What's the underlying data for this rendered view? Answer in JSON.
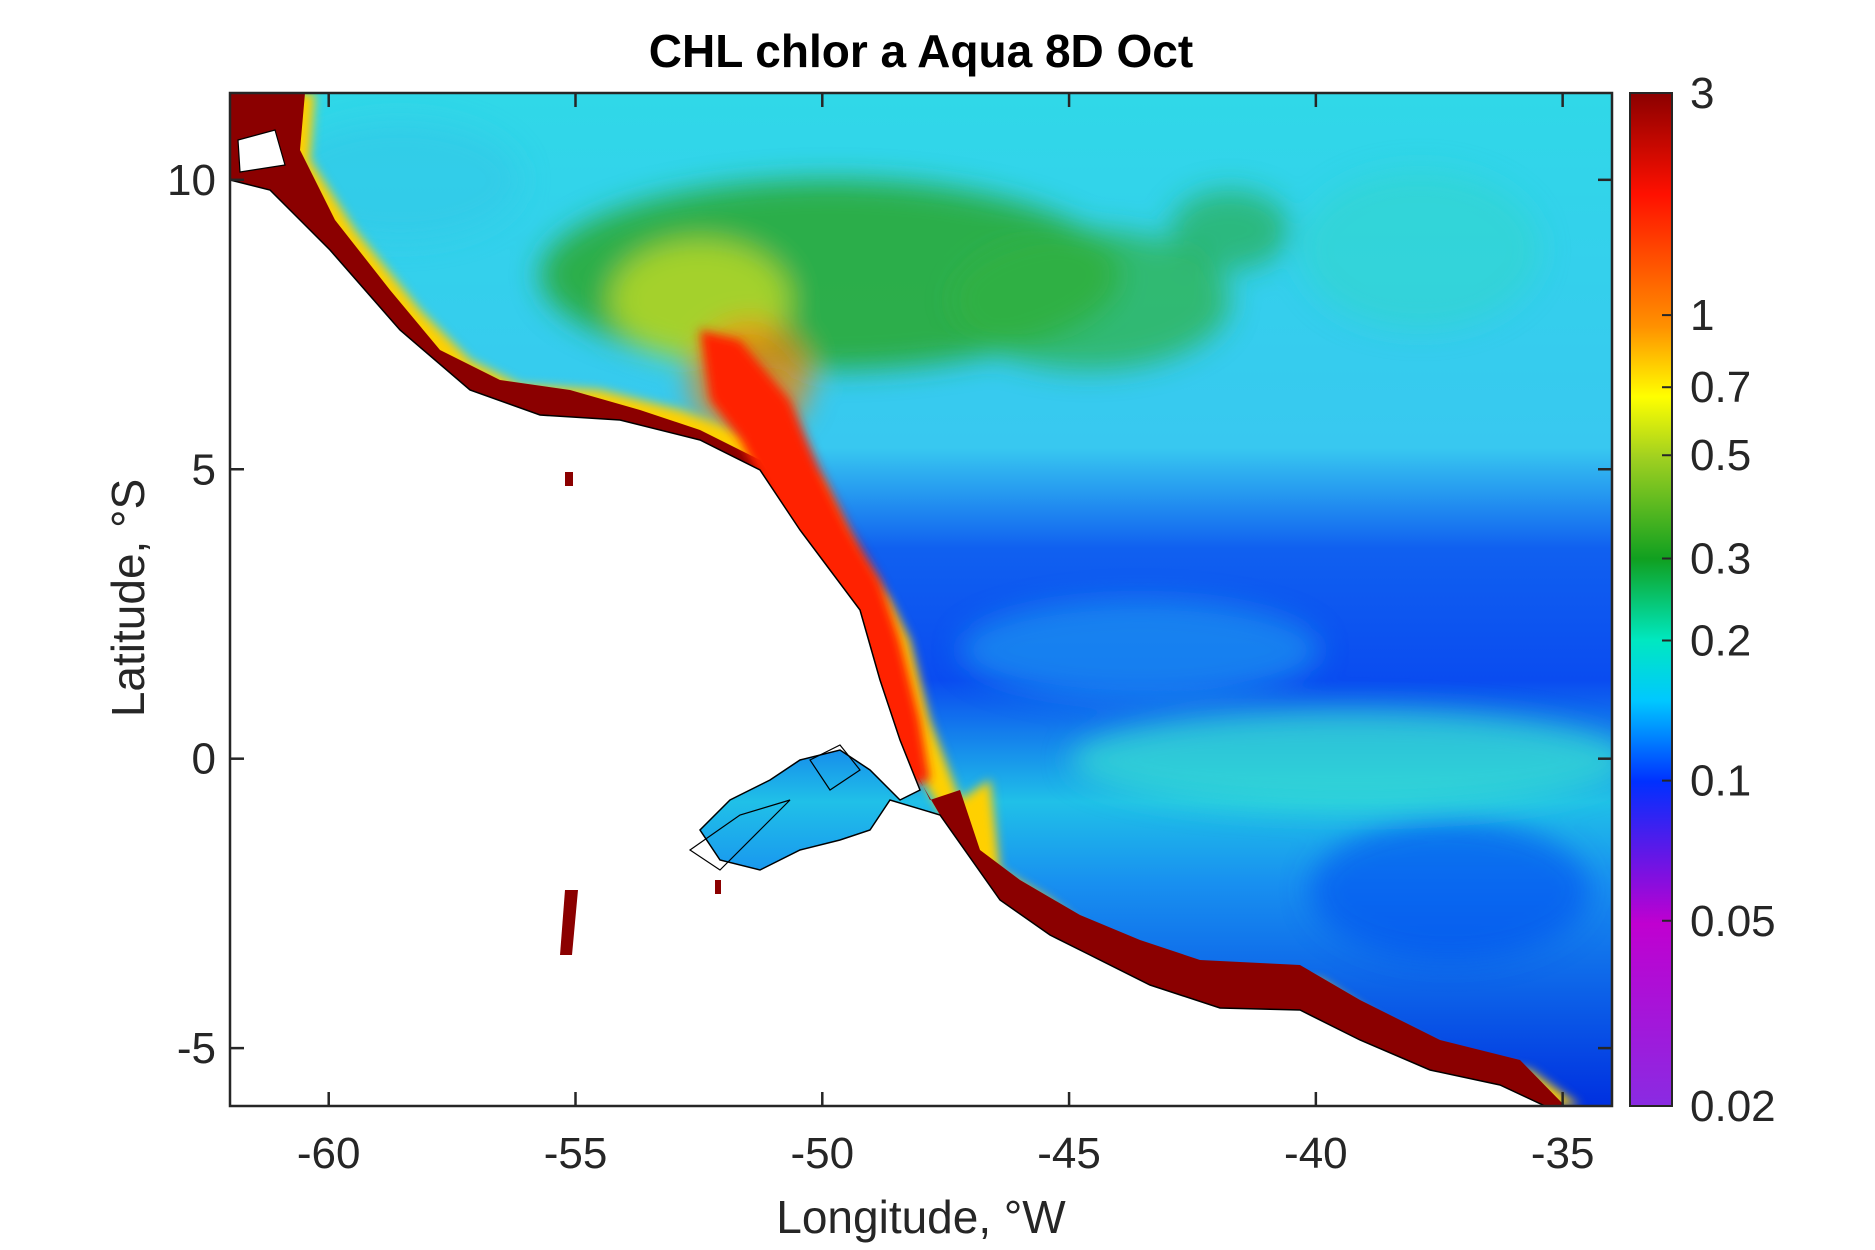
{
  "map": {
    "title": "CHL chlor a Aqua 8D Oct",
    "xlabel": "Longitude, °W",
    "ylabel": "Latitude, °S",
    "x_range": [
      -62,
      -34
    ],
    "y_range": [
      -6,
      11.5
    ],
    "x_ticks": [
      -60,
      -55,
      -50,
      -45,
      -40,
      -35
    ],
    "y_ticks": [
      -5,
      0,
      5,
      10
    ],
    "land_color": "#ffffff",
    "coast_color": "#000000"
  },
  "colorbar": {
    "tick_values": [
      3,
      1,
      0.7,
      0.5,
      0.3,
      0.2,
      0.1,
      0.05,
      0.02
    ],
    "tick_labels": [
      "3",
      "1",
      "0.7",
      "0.5",
      "0.3",
      "0.2",
      "0.1",
      "0.05",
      "0.02"
    ],
    "range": [
      0.02,
      3
    ],
    "scale": "log",
    "colors": {
      "0.02": "#8a2be2",
      "0.05": "#c000d0",
      "0.1": "#0030ff",
      "0.15": "#00c8ff",
      "0.2": "#00e8c0",
      "0.3": "#10a020",
      "0.5": "#a0d020",
      "0.7": "#ffff00",
      "1": "#ff9000",
      "2": "#ff1000",
      "3": "#8b0000"
    }
  }
}
